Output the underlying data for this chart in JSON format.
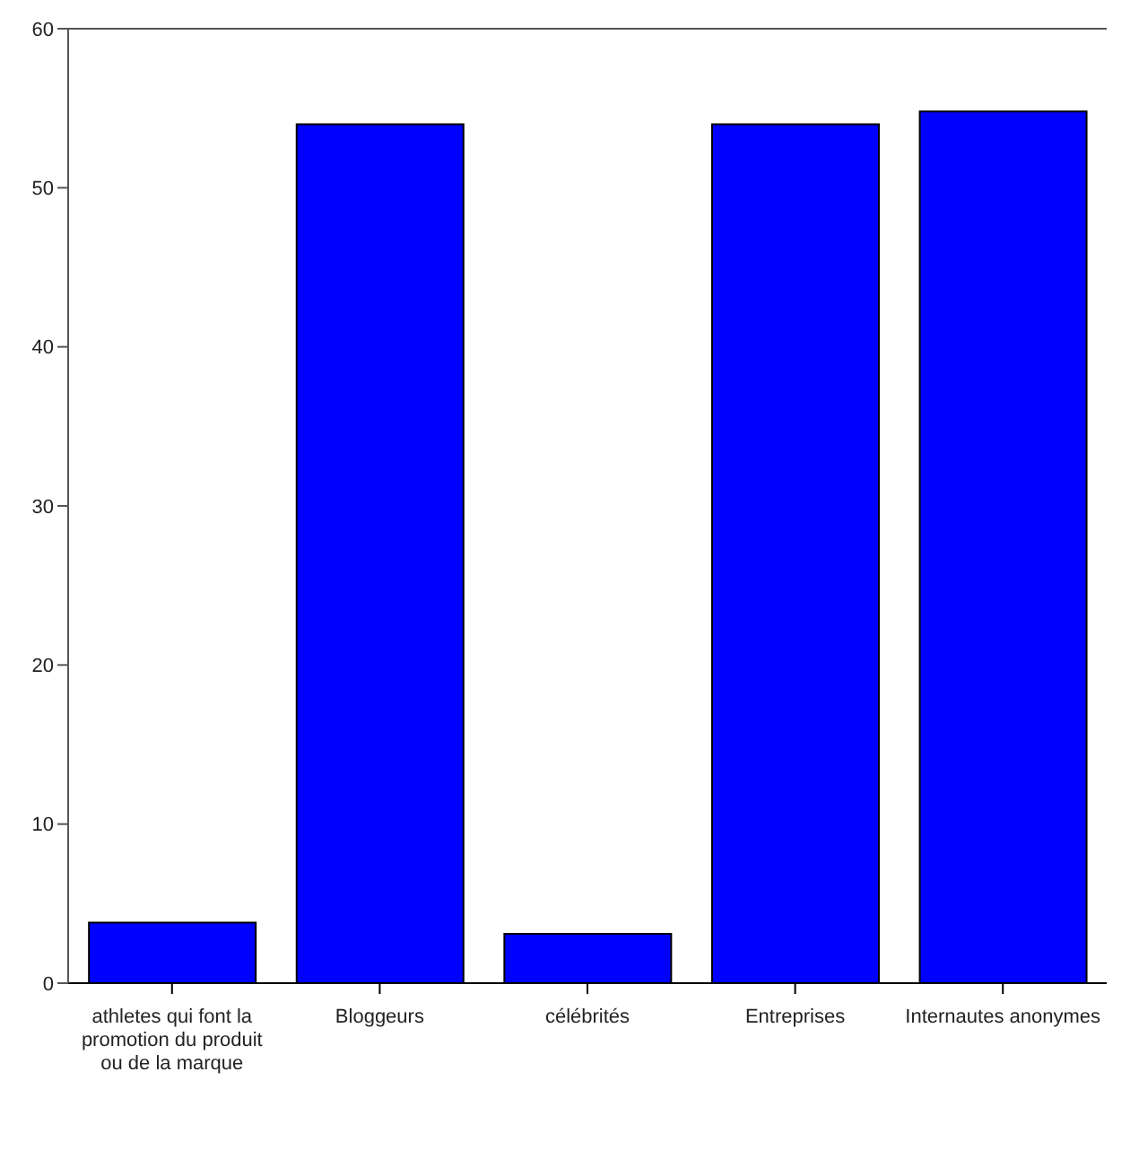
{
  "chart_data": {
    "type": "bar",
    "categories": [
      "athletes qui font la promotion du produit ou de la marque",
      "Bloggeurs",
      "célébrités",
      "Entreprises",
      "Internautes anonymes"
    ],
    "values": [
      3.8,
      54,
      3.1,
      54,
      54.8
    ],
    "color": "#0000ff",
    "ylim": [
      0,
      60
    ],
    "yticks": [
      0,
      10,
      20,
      30,
      40,
      50,
      60
    ],
    "grid": false
  }
}
